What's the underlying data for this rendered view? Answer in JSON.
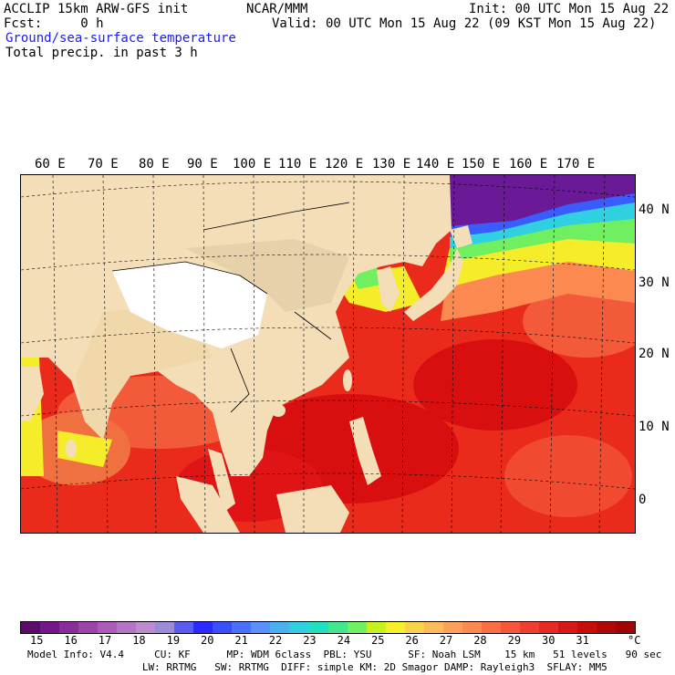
{
  "header": {
    "model_line": "ACCLIP 15km ARW-GFS init",
    "fcst_line": "Fcst:     0 h",
    "center": "NCAR/MMM",
    "init": "Init: 00 UTC Mon 15 Aug 22",
    "valid": "Valid: 00 UTC Mon 15 Aug 22 (09 KST Mon 15 Aug 22)",
    "field1": "Ground/sea-surface temperature",
    "field2": "Total precip. in past 3 h"
  },
  "map": {
    "lon_labels": [
      "60 E",
      "70 E",
      "80 E",
      "90 E",
      "100 E",
      "110 E",
      "120 E",
      "130 E",
      "140 E",
      "150 E",
      "160 E",
      "170 E"
    ],
    "lat_labels": [
      "40 N",
      "30 N",
      "20 N",
      "10 N",
      "0"
    ],
    "colors": {
      "land": "#f3deb8",
      "plateau": "#ffffff",
      "sea_warm": "#ea2a1a",
      "sea_hot": "#d90e0e",
      "sea_mid": "#ff6a3a",
      "sea_yellow": "#f5ec2a",
      "sea_blue": "#3a5cff",
      "sea_purple": "#6a1a96"
    }
  },
  "colorbar": {
    "colors": [
      "#5c0a6e",
      "#74168a",
      "#8a2c9c",
      "#9c44aa",
      "#aa5cb8",
      "#b474c4",
      "#bc8ccc",
      "#9c8cd8",
      "#5c5cf0",
      "#2a2aff",
      "#3a50ff",
      "#4a70ff",
      "#5a90ff",
      "#4ab0f0",
      "#30d0e0",
      "#20e0c0",
      "#40e890",
      "#70f060",
      "#c8f020",
      "#f5f02a",
      "#fad24a",
      "#fcbc5a",
      "#fca05a",
      "#fc8a50",
      "#fc6e44",
      "#f8563a",
      "#f03e30",
      "#e82a24",
      "#d81818",
      "#c80c0c",
      "#b40808",
      "#a00404"
    ],
    "labels": [
      "15",
      "16",
      "17",
      "18",
      "19",
      "20",
      "21",
      "22",
      "23",
      "24",
      "25",
      "26",
      "27",
      "28",
      "29",
      "30",
      "31"
    ],
    "unit": "°C"
  },
  "footer": {
    "line1": "Model Info: V4.4     CU: KF      MP: WDM 6class  PBL: YSU      SF: Noah LSM    15 km   51 levels   90 sec",
    "line2": "                   LW: RRTMG   SW: RRTMG  DIFF: simple KM: 2D Smagor DAMP: Rayleigh3  SFLAY: MM5"
  }
}
